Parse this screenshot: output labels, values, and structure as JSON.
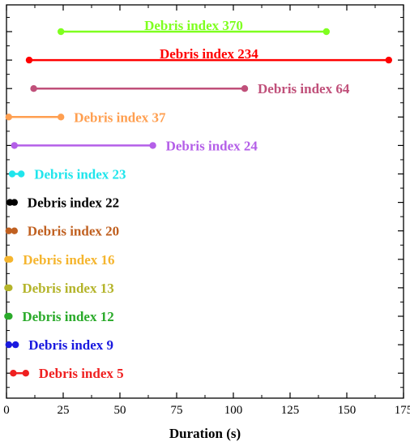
{
  "chart_data": {
    "type": "dumbbell",
    "xlabel": "Duration (s)",
    "xlim": [
      0,
      175
    ],
    "xticks": [
      0,
      25,
      50,
      75,
      100,
      125,
      150,
      175
    ],
    "grid": false,
    "series": [
      {
        "name": "Debris index 370",
        "start": 24,
        "end": 141,
        "color": "#7fff1f"
      },
      {
        "name": "Debris index 234",
        "start": 10,
        "end": 168.5,
        "color": "#ff0000"
      },
      {
        "name": "Debris index 64",
        "start": 12,
        "end": 105,
        "color": "#c0507a"
      },
      {
        "name": "Debris index 37",
        "start": 1,
        "end": 24,
        "color": "#ff9f50"
      },
      {
        "name": "Debris index 24",
        "start": 3.5,
        "end": 64.5,
        "color": "#b45fe8"
      },
      {
        "name": "Debris index 23",
        "start": 2.5,
        "end": 6.5,
        "color": "#1fe5ec"
      },
      {
        "name": "Debris index 22",
        "start": 1.5,
        "end": 3.5,
        "color": "#000000"
      },
      {
        "name": "Debris index 20",
        "start": 1,
        "end": 3.5,
        "color": "#c06020"
      },
      {
        "name": "Debris index 16",
        "start": 0.5,
        "end": 1.5,
        "color": "#f5b52e"
      },
      {
        "name": "Debris index 13",
        "start": 0.5,
        "end": 1.2,
        "color": "#b4b42a"
      },
      {
        "name": "Debris index 12",
        "start": 0.5,
        "end": 1.2,
        "color": "#2aaa2a"
      },
      {
        "name": "Debris index 9",
        "start": 1,
        "end": 4,
        "color": "#1a1adf"
      },
      {
        "name": "Debris index 5",
        "start": 3,
        "end": 8.5,
        "color": "#ef2020"
      }
    ]
  }
}
